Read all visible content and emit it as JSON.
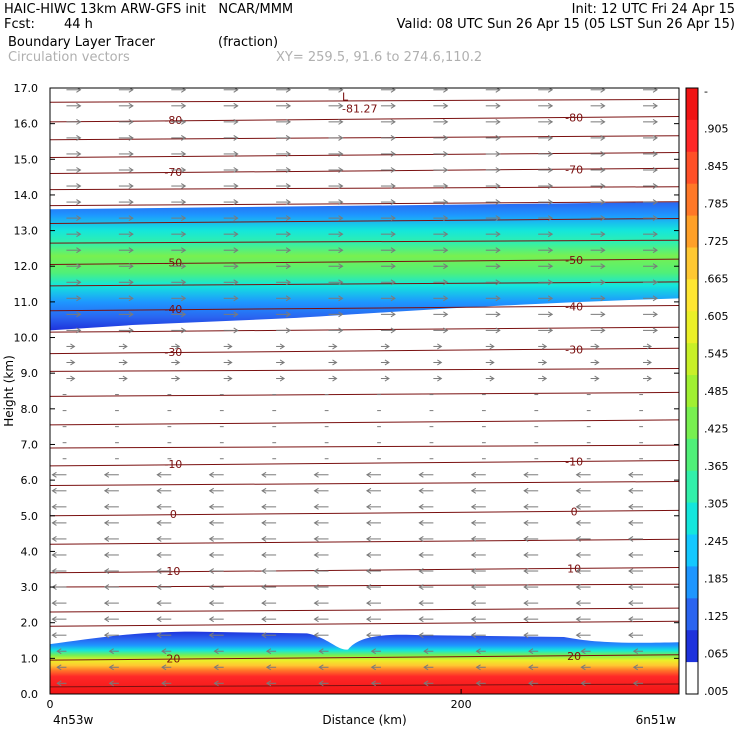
{
  "header": {
    "title": "HAIC-HIWC 13km ARW-GFS init   NCAR/MMM",
    "init": "Init: 12 UTC Fri 24 Apr 15",
    "fcst_label": "Fcst:",
    "fcst_value": "44 h",
    "valid": "Valid: 08 UTC Sun 26 Apr 15 (05 LST Sun 26 Apr 15)",
    "field_name": "Boundary Layer Tracer",
    "field_units": "(fraction)",
    "vector_name": "Circulation vectors",
    "xy_range": "XY= 259.5, 91.6 to 274.6,110.2"
  },
  "colors": {
    "contour": "#7a1010",
    "vector": "#7a7a7a",
    "scale": [
      "#ffffff",
      "#1e32dc",
      "#2a64f0",
      "#1e96ff",
      "#14c8ff",
      "#14e6dc",
      "#32f0aa",
      "#50f078",
      "#78f050",
      "#a0f032",
      "#c8f028",
      "#ebf028",
      "#ffe632",
      "#ffc832",
      "#ffa028",
      "#ff7828",
      "#ff5028",
      "#ff2828",
      "#f01414"
    ]
  },
  "chart_data": {
    "type": "heatmap",
    "xlabel": "Distance (km)",
    "ylabel": "Height (km)",
    "xlim": [
      0,
      306
    ],
    "ylim": [
      0.0,
      17.0
    ],
    "y_ticks": [
      "0.0",
      "1.0",
      "2.0",
      "3.0",
      "4.0",
      "5.0",
      "6.0",
      "7.0",
      "8.0",
      "9.0",
      "10.0",
      "11.0",
      "12.0",
      "13.0",
      "14.0",
      "15.0",
      "16.0",
      "17.0"
    ],
    "x_ticks": [
      {
        "value": 0,
        "label": "0"
      },
      {
        "value": 200,
        "label": "200"
      }
    ],
    "endpoint_left": "4n53w",
    "endpoint_right": "6n51w",
    "colorbar_labels": [
      "-",
      ".905",
      ".845",
      ".785",
      ".725",
      ".665",
      ".605",
      ".545",
      ".485",
      ".425",
      ".365",
      ".305",
      ".245",
      ".185",
      ".125",
      ".065",
      ".005"
    ],
    "contours": [
      {
        "label": "-80",
        "height": 16.05
      },
      {
        "label": "-70",
        "height": 14.6
      },
      {
        "label": "-50",
        "height": 12.05
      },
      {
        "label": "-40",
        "height": 10.75
      },
      {
        "label": "-30",
        "height": 9.55
      },
      {
        "label": "-10",
        "height": 6.4
      },
      {
        "label": "0",
        "height": 5.0
      },
      {
        "label": "10",
        "height": 3.4
      },
      {
        "label": "20",
        "height": 0.95
      }
    ],
    "min_label": {
      "marker": "L",
      "value": "-81.27",
      "x": 145,
      "height": 16.6
    },
    "tracer_layers": [
      {
        "name": "upper tracer layer",
        "bottom": 10.6,
        "top": 13.6
      },
      {
        "name": "boundary layer",
        "bottom": 0.0,
        "top": 1.5
      }
    ]
  }
}
